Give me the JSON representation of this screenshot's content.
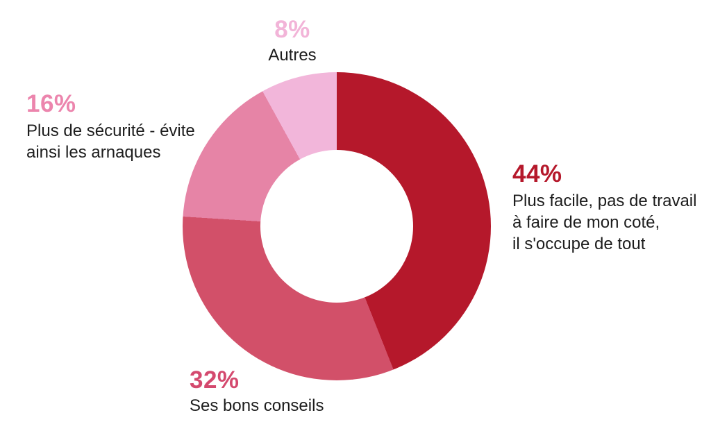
{
  "chart_data": {
    "type": "pie",
    "variant": "donut",
    "title": "",
    "start_angle_deg": 0,
    "direction": "clockwise",
    "inner_radius_ratio": 0.495,
    "legend_position": "none",
    "labels_position": "outside",
    "categories": [
      "Plus facile, pas de travail à faire de mon coté, il s'occupe de tout",
      "Ses bons conseils",
      "Plus de sécurité - évite ainsi les arnaques",
      "Autres"
    ],
    "values": [
      44,
      32,
      16,
      8
    ],
    "colors": [
      "#b5182b",
      "#d25069",
      "#e684a6",
      "#f2b6da"
    ]
  },
  "annotations": {
    "seg_44": {
      "pct": "44%",
      "pct_color": "#b5182b",
      "line1": "Plus facile, pas de travail",
      "line2": "à faire de mon coté,",
      "line3": "il s'occupe de tout"
    },
    "seg_32": {
      "pct": "32%",
      "pct_color": "#d4496e",
      "line1": "Ses bons conseils"
    },
    "seg_16": {
      "pct": "16%",
      "pct_color": "#ec85ad",
      "line1": "Plus de sécurité - évite",
      "line2": "ainsi les arnaques"
    },
    "seg_8": {
      "pct": "8%",
      "pct_color": "#f2b4d8",
      "line1": "Autres"
    }
  },
  "style": {
    "background": "#ffffff",
    "body_text_color": "#1d1d1d"
  }
}
